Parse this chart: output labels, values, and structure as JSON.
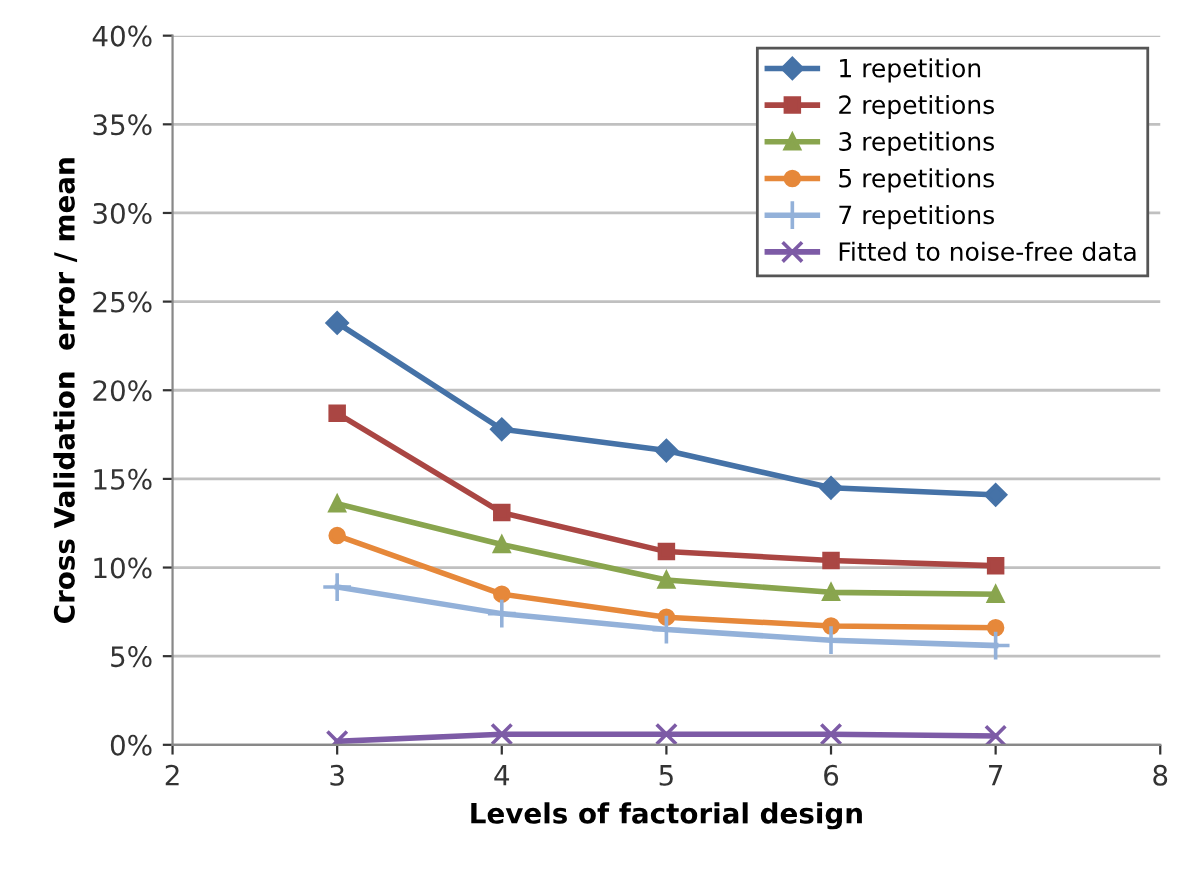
{
  "chart_data": {
    "type": "line",
    "xlabel": "Levels of factorial design",
    "ylabel": "Cross Validation  error / mean",
    "x": [
      3,
      4,
      5,
      6,
      7
    ],
    "series": [
      {
        "name": "1 repetition",
        "color": "#4572a7",
        "marker": "diamond",
        "values": [
          23.8,
          17.8,
          16.6,
          14.5,
          14.1
        ]
      },
      {
        "name": "2 repetitions",
        "color": "#aa4643",
        "marker": "square",
        "values": [
          18.7,
          13.1,
          10.9,
          10.4,
          10.1
        ]
      },
      {
        "name": "3 repetitions",
        "color": "#89a54e",
        "marker": "triangle",
        "values": [
          13.6,
          11.3,
          9.3,
          8.6,
          8.5
        ]
      },
      {
        "name": "5 repetitions",
        "color": "#e6883a",
        "marker": "circle",
        "values": [
          11.8,
          8.5,
          7.2,
          6.7,
          6.6
        ]
      },
      {
        "name": "7 repetitions",
        "color": "#93b1d9",
        "marker": "plus",
        "values": [
          8.9,
          7.4,
          6.5,
          5.9,
          5.6
        ]
      },
      {
        "name": "Fitted to noise-free data",
        "color": "#7d5ba6",
        "marker": "cross",
        "values": [
          0.2,
          0.6,
          0.6,
          0.6,
          0.5
        ]
      }
    ],
    "xlim": [
      2,
      8
    ],
    "xticks": [
      2,
      3,
      4,
      5,
      6,
      7,
      8
    ],
    "ylim": [
      0,
      40
    ],
    "yticks": [
      {
        "value": 0,
        "label": "0%"
      },
      {
        "value": 5,
        "label": "5%"
      },
      {
        "value": 10,
        "label": "10%"
      },
      {
        "value": 15,
        "label": "15%"
      },
      {
        "value": 20,
        "label": "20%"
      },
      {
        "value": 25,
        "label": "25%"
      },
      {
        "value": 30,
        "label": "30%"
      },
      {
        "value": 35,
        "label": "35%"
      },
      {
        "value": 40,
        "label": "40%"
      }
    ],
    "grid": "y",
    "legend": "top right",
    "line_style": "solid"
  }
}
